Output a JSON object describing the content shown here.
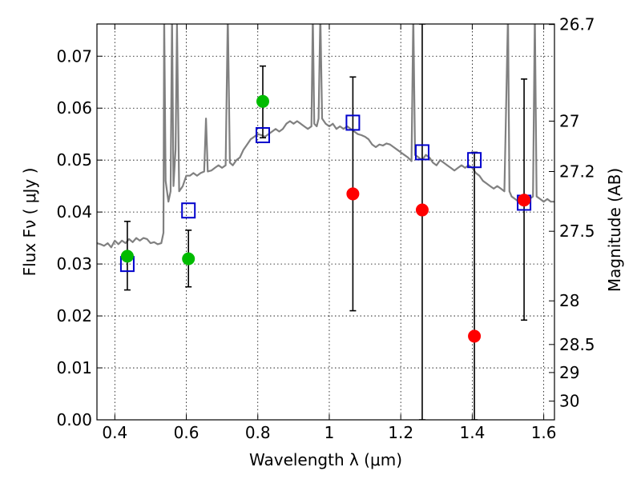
{
  "chart_data": {
    "type": "scatter",
    "xlabel": "Wavelength  λ (μm)",
    "ylabel_left": "Flux  Fν  ( μJy )",
    "ylabel_right": "Magnitude (AB)",
    "xlim": [
      0.35,
      1.63
    ],
    "ylim": [
      0.0,
      0.0762
    ],
    "x_ticks": [
      0.4,
      0.6,
      0.8,
      1.0,
      1.2,
      1.4,
      1.6
    ],
    "x_tick_labels": [
      "0.4",
      "0.6",
      "0.8",
      "1",
      "1.2",
      "1.4",
      "1.6"
    ],
    "y_ticks": [
      0.0,
      0.01,
      0.02,
      0.03,
      0.04,
      0.05,
      0.06,
      0.07
    ],
    "y_tick_labels": [
      "0.00",
      "0.01",
      "0.02",
      "0.03",
      "0.04",
      "0.05",
      "0.06",
      "0.07"
    ],
    "right_ticks": [
      {
        "label": "26.7",
        "flux": 0.0761
      },
      {
        "label": "27",
        "flux": 0.0575
      },
      {
        "label": "27.2",
        "flux": 0.0478
      },
      {
        "label": "27.5",
        "flux": 0.0363
      },
      {
        "label": "28",
        "flux": 0.0229
      },
      {
        "label": "28.5",
        "flux": 0.0145
      },
      {
        "label": "29",
        "flux": 0.0091
      },
      {
        "label": "30",
        "flux": 0.0036
      }
    ],
    "grid": true,
    "colors": {
      "spectrum": "#808080",
      "detected": "#00bb00",
      "dropout": "#ff0000",
      "model_box": "#0000cc",
      "errorbar": "#000000"
    },
    "series": [
      {
        "marker": "circle",
        "color": "#00bb00",
        "points": [
          {
            "x": 0.435,
            "y": 0.0315,
            "yerr_low": 0.025,
            "yerr_high": 0.0382
          },
          {
            "x": 0.606,
            "y": 0.031,
            "yerr_low": 0.0256,
            "yerr_high": 0.0365
          },
          {
            "x": 0.814,
            "y": 0.0613,
            "yerr_low": 0.0543,
            "yerr_high": 0.0681
          }
        ]
      },
      {
        "marker": "circle",
        "color": "#ff0000",
        "points": [
          {
            "x": 1.066,
            "y": 0.0435,
            "yerr_low": 0.021,
            "yerr_high": 0.066
          },
          {
            "x": 1.26,
            "y": 0.0404,
            "yerr_low": 0.0,
            "yerr_high": 0.0762
          },
          {
            "x": 1.406,
            "y": 0.0161,
            "yerr_low": 0.0,
            "yerr_high": 0.0515
          },
          {
            "x": 1.545,
            "y": 0.0423,
            "yerr_low": 0.0192,
            "yerr_high": 0.0656
          }
        ]
      },
      {
        "marker": "open-square",
        "color": "#0000cc",
        "points": [
          {
            "x": 0.435,
            "y": 0.03
          },
          {
            "x": 0.606,
            "y": 0.0403
          },
          {
            "x": 0.814,
            "y": 0.0548
          },
          {
            "x": 1.066,
            "y": 0.0572
          },
          {
            "x": 1.26,
            "y": 0.0515
          },
          {
            "x": 1.406,
            "y": 0.05
          },
          {
            "x": 1.545,
            "y": 0.0418
          }
        ]
      }
    ],
    "spectrum": [
      [
        0.35,
        0.034
      ],
      [
        0.36,
        0.0338
      ],
      [
        0.37,
        0.0335
      ],
      [
        0.38,
        0.034
      ],
      [
        0.39,
        0.0332
      ],
      [
        0.4,
        0.0345
      ],
      [
        0.41,
        0.0338
      ],
      [
        0.42,
        0.0345
      ],
      [
        0.43,
        0.034
      ],
      [
        0.44,
        0.0348
      ],
      [
        0.45,
        0.0342
      ],
      [
        0.46,
        0.035
      ],
      [
        0.47,
        0.0345
      ],
      [
        0.48,
        0.035
      ],
      [
        0.49,
        0.0348
      ],
      [
        0.5,
        0.034
      ],
      [
        0.51,
        0.0342
      ],
      [
        0.52,
        0.0338
      ],
      [
        0.53,
        0.034
      ],
      [
        0.536,
        0.036
      ],
      [
        0.538,
        0.078
      ],
      [
        0.542,
        0.046
      ],
      [
        0.55,
        0.042
      ],
      [
        0.556,
        0.044
      ],
      [
        0.56,
        0.078
      ],
      [
        0.564,
        0.045
      ],
      [
        0.57,
        0.052
      ],
      [
        0.574,
        0.076
      ],
      [
        0.58,
        0.044
      ],
      [
        0.59,
        0.045
      ],
      [
        0.6,
        0.047
      ],
      [
        0.61,
        0.047
      ],
      [
        0.62,
        0.0475
      ],
      [
        0.63,
        0.047
      ],
      [
        0.64,
        0.0475
      ],
      [
        0.65,
        0.0478
      ],
      [
        0.655,
        0.058
      ],
      [
        0.66,
        0.0478
      ],
      [
        0.67,
        0.048
      ],
      [
        0.68,
        0.0485
      ],
      [
        0.69,
        0.049
      ],
      [
        0.7,
        0.0485
      ],
      [
        0.71,
        0.049
      ],
      [
        0.716,
        0.078
      ],
      [
        0.722,
        0.0495
      ],
      [
        0.73,
        0.049
      ],
      [
        0.74,
        0.05
      ],
      [
        0.75,
        0.0505
      ],
      [
        0.76,
        0.052
      ],
      [
        0.77,
        0.053
      ],
      [
        0.78,
        0.054
      ],
      [
        0.79,
        0.0545
      ],
      [
        0.8,
        0.055
      ],
      [
        0.81,
        0.0548
      ],
      [
        0.82,
        0.0545
      ],
      [
        0.83,
        0.055
      ],
      [
        0.84,
        0.0555
      ],
      [
        0.85,
        0.056
      ],
      [
        0.86,
        0.0555
      ],
      [
        0.87,
        0.056
      ],
      [
        0.88,
        0.057
      ],
      [
        0.89,
        0.0575
      ],
      [
        0.9,
        0.057
      ],
      [
        0.91,
        0.0575
      ],
      [
        0.92,
        0.057
      ],
      [
        0.93,
        0.0565
      ],
      [
        0.94,
        0.056
      ],
      [
        0.95,
        0.0565
      ],
      [
        0.954,
        0.078
      ],
      [
        0.958,
        0.057
      ],
      [
        0.965,
        0.0565
      ],
      [
        0.97,
        0.058
      ],
      [
        0.975,
        0.078
      ],
      [
        0.98,
        0.058
      ],
      [
        0.99,
        0.057
      ],
      [
        1.0,
        0.0565
      ],
      [
        1.01,
        0.057
      ],
      [
        1.02,
        0.056
      ],
      [
        1.03,
        0.0565
      ],
      [
        1.04,
        0.056
      ],
      [
        1.05,
        0.0565
      ],
      [
        1.06,
        0.056
      ],
      [
        1.07,
        0.0555
      ],
      [
        1.08,
        0.055
      ],
      [
        1.09,
        0.0548
      ],
      [
        1.1,
        0.0545
      ],
      [
        1.11,
        0.054
      ],
      [
        1.12,
        0.053
      ],
      [
        1.13,
        0.0525
      ],
      [
        1.14,
        0.053
      ],
      [
        1.15,
        0.0528
      ],
      [
        1.16,
        0.0532
      ],
      [
        1.17,
        0.053
      ],
      [
        1.18,
        0.0525
      ],
      [
        1.19,
        0.052
      ],
      [
        1.2,
        0.0515
      ],
      [
        1.21,
        0.051
      ],
      [
        1.22,
        0.0505
      ],
      [
        1.23,
        0.0498
      ],
      [
        1.235,
        0.078
      ],
      [
        1.24,
        0.051
      ],
      [
        1.25,
        0.0505
      ],
      [
        1.26,
        0.05
      ],
      [
        1.27,
        0.051
      ],
      [
        1.28,
        0.0505
      ],
      [
        1.29,
        0.0495
      ],
      [
        1.3,
        0.049
      ],
      [
        1.31,
        0.05
      ],
      [
        1.32,
        0.0495
      ],
      [
        1.33,
        0.049
      ],
      [
        1.34,
        0.0485
      ],
      [
        1.35,
        0.048
      ],
      [
        1.36,
        0.0485
      ],
      [
        1.37,
        0.049
      ],
      [
        1.38,
        0.0485
      ],
      [
        1.39,
        0.049
      ],
      [
        1.4,
        0.0485
      ],
      [
        1.41,
        0.0475
      ],
      [
        1.42,
        0.047
      ],
      [
        1.43,
        0.046
      ],
      [
        1.44,
        0.0455
      ],
      [
        1.45,
        0.045
      ],
      [
        1.46,
        0.0445
      ],
      [
        1.47,
        0.045
      ],
      [
        1.48,
        0.0445
      ],
      [
        1.49,
        0.044
      ],
      [
        1.5,
        0.078
      ],
      [
        1.504,
        0.044
      ],
      [
        1.51,
        0.043
      ],
      [
        1.52,
        0.0425
      ],
      [
        1.53,
        0.042
      ],
      [
        1.54,
        0.0425
      ],
      [
        1.55,
        0.042
      ],
      [
        1.56,
        0.0425
      ],
      [
        1.57,
        0.043
      ],
      [
        1.575,
        0.078
      ],
      [
        1.58,
        0.043
      ],
      [
        1.59,
        0.0425
      ],
      [
        1.6,
        0.042
      ],
      [
        1.61,
        0.0425
      ],
      [
        1.62,
        0.042
      ],
      [
        1.63,
        0.042
      ]
    ]
  }
}
